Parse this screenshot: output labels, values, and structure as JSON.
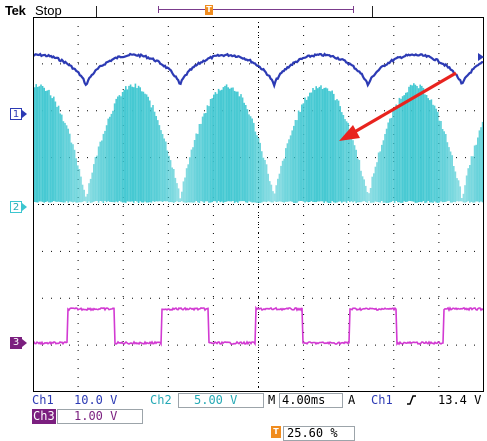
{
  "header": {
    "brand": "Tek",
    "status": "Stop"
  },
  "markers": {
    "trigger_glyph": "T",
    "channel1": "1",
    "channel2": "2",
    "channel3": "3"
  },
  "footer": {
    "ch1_label": "Ch1",
    "ch1_scale": "10.0 V",
    "ch2_label": "Ch2",
    "ch2_scale": "5.00 V",
    "timebase_label": "M",
    "timebase": "4.00ms",
    "trigger_mode": "A",
    "trigger_source": "Ch1",
    "trigger_level": "13.4 V",
    "ch3_label": "Ch3",
    "ch3_scale": "1.00 V",
    "trigger_position": "25.60 %"
  },
  "colors": {
    "ch1": "#2c3ab4",
    "ch2": "#3cc6d0",
    "ch3": "#d23ad2",
    "trigger": "#f08c1e",
    "annotation_arrow": "#e8231e",
    "grid": "#000000"
  },
  "icons": {
    "trigger_marker": "trigger-position-icon",
    "slope": "rising-edge-icon",
    "arrow": "annotation-arrow-icon"
  }
}
